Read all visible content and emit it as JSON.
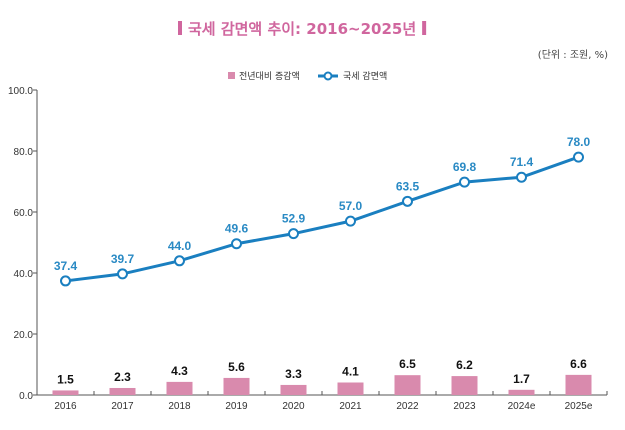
{
  "chart_data": {
    "type": "bar+line",
    "title": "국세 감면액 추이: 2016~2025년",
    "unit_note": "(단위 : 조원, %)",
    "categories": [
      "2016",
      "2017",
      "2018",
      "2019",
      "2020",
      "2021",
      "2022",
      "2023",
      "2024e",
      "2025e"
    ],
    "series": [
      {
        "name": "전년대비 증감액",
        "type": "bar",
        "color": "#d98aad",
        "values": [
          1.5,
          2.3,
          4.3,
          5.6,
          3.3,
          4.1,
          6.5,
          6.2,
          1.7,
          6.6
        ]
      },
      {
        "name": "국세 감면액",
        "type": "line",
        "color": "#1a7fc0",
        "values": [
          37.4,
          39.7,
          44.0,
          49.6,
          52.9,
          57.0,
          63.5,
          69.8,
          71.4,
          78.0
        ]
      }
    ],
    "ylim": [
      0,
      100
    ],
    "yticks": [
      "0.0",
      "20.0",
      "40.0",
      "60.0",
      "80.0",
      "100.0"
    ],
    "legend": "top-left",
    "grid": false,
    "title_color": "#d0669e"
  }
}
